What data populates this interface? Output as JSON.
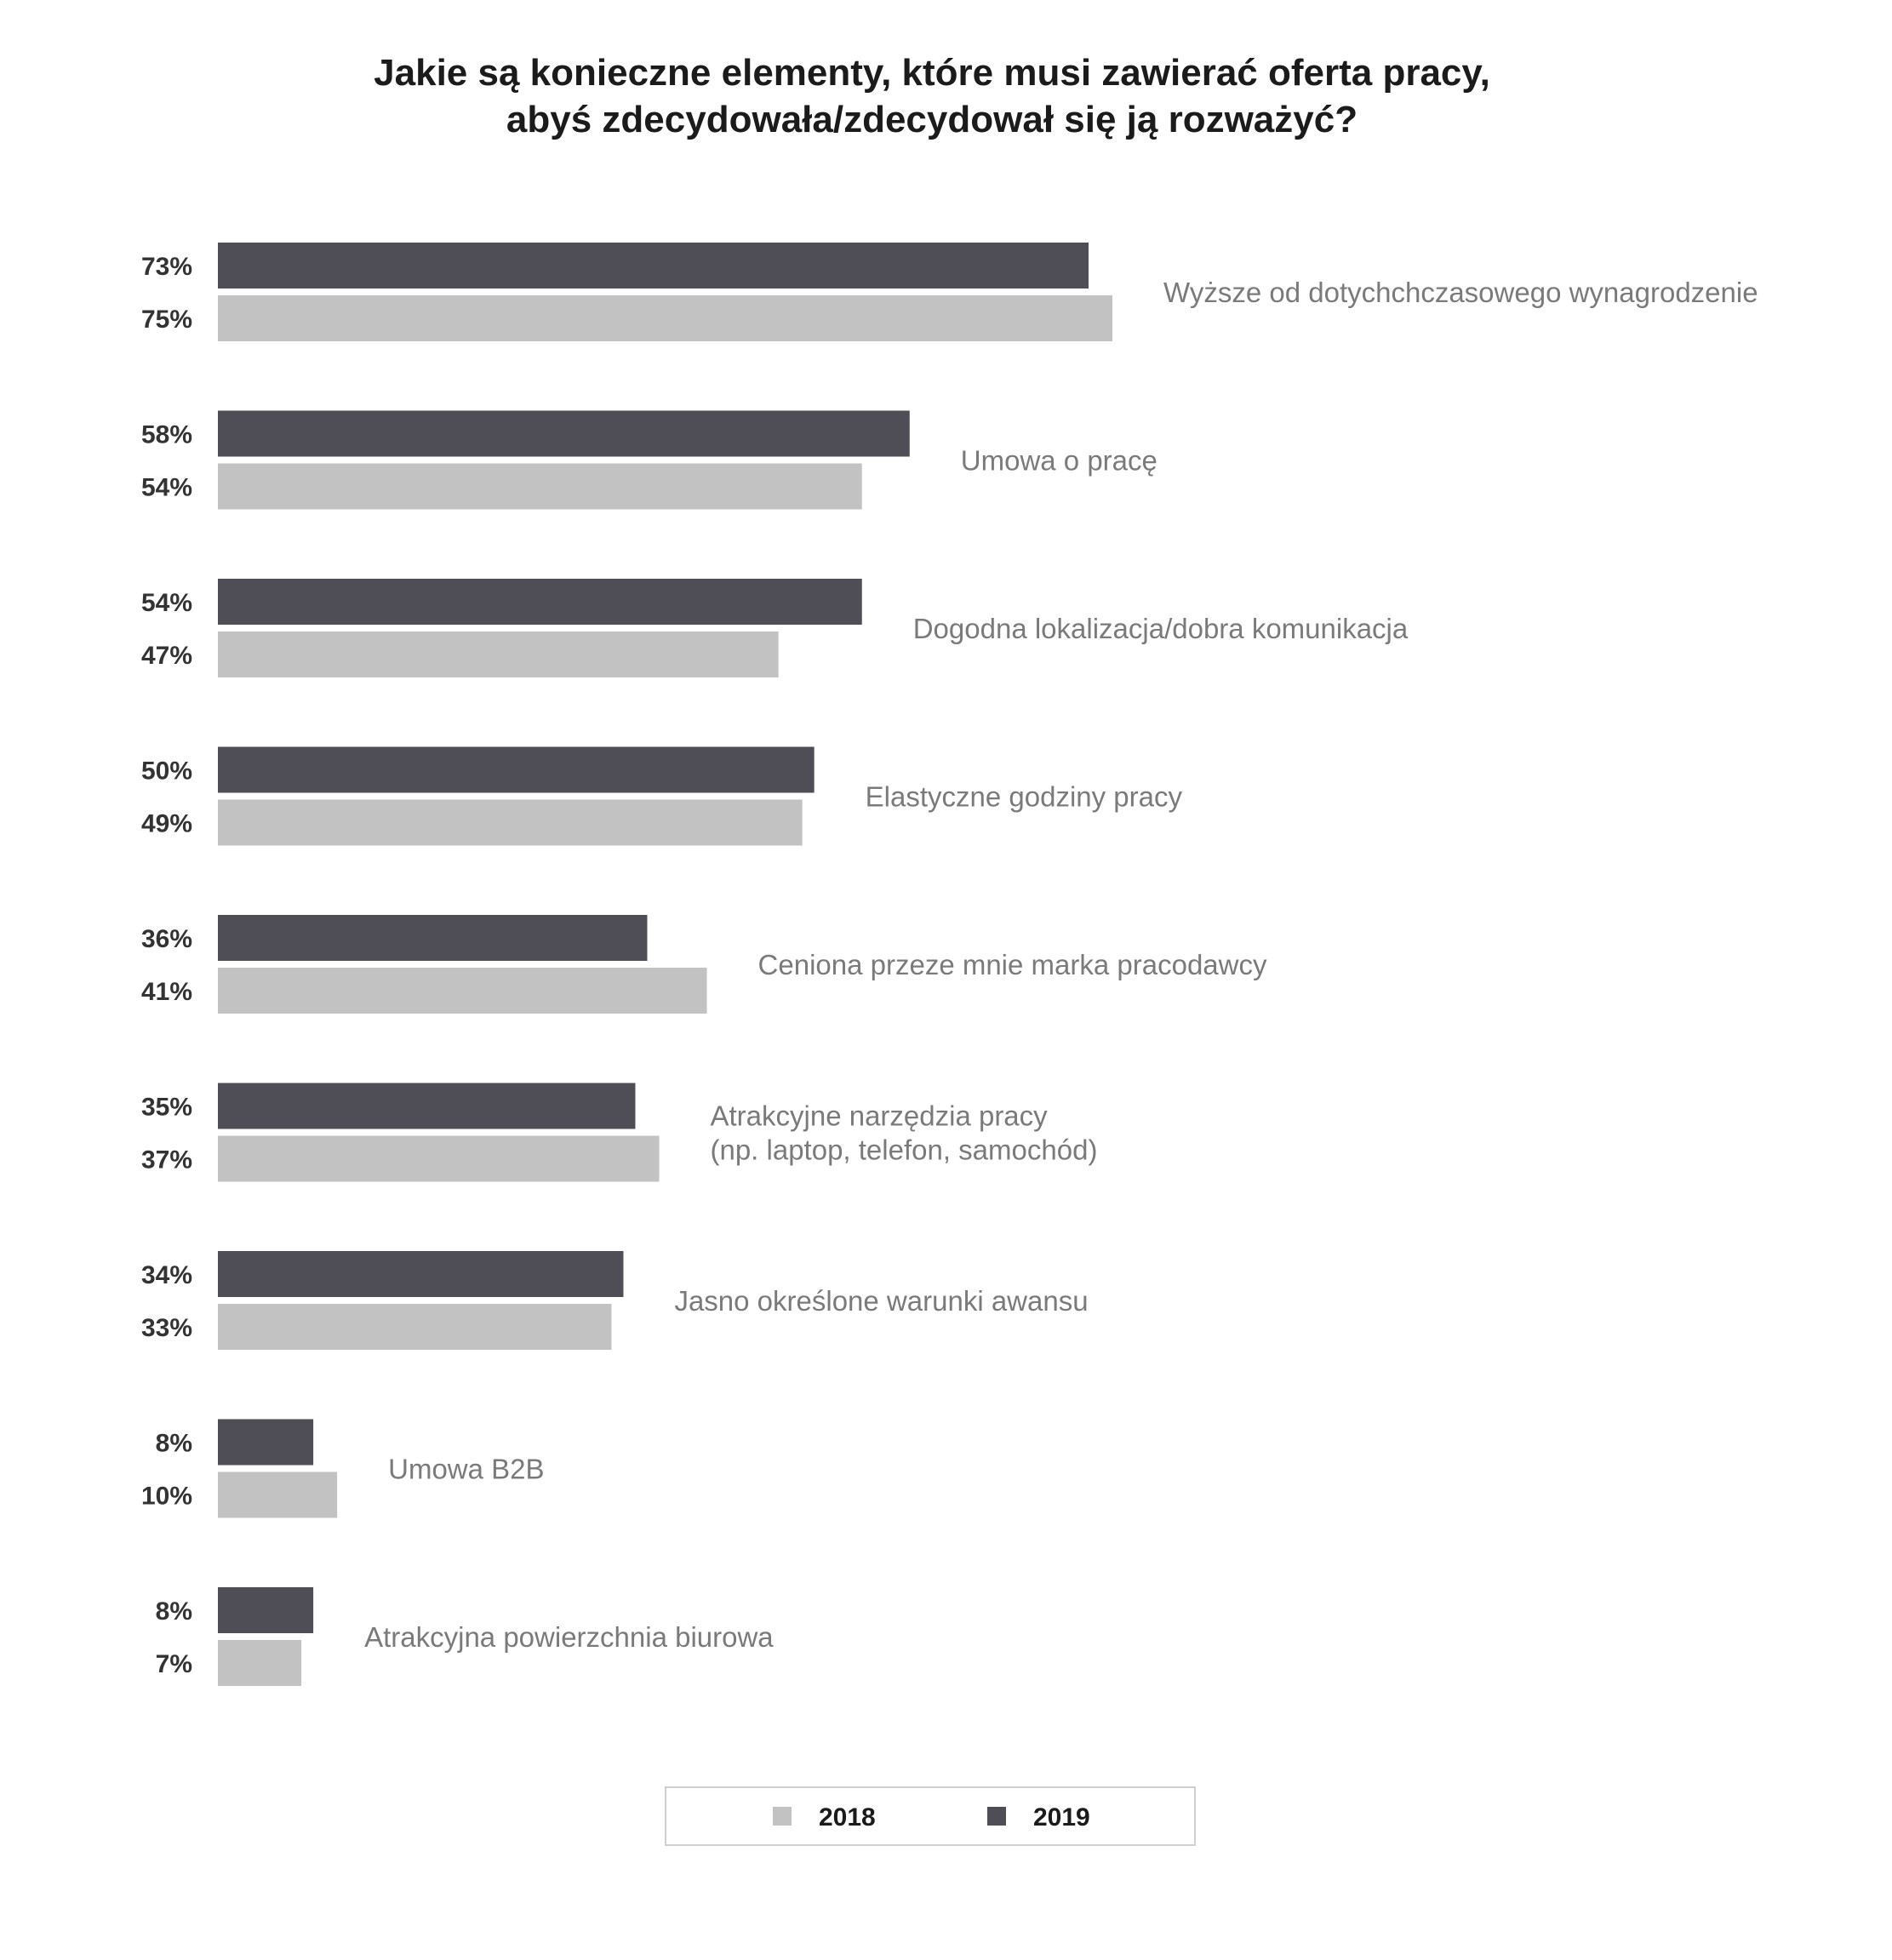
{
  "chart_data": {
    "type": "bar",
    "orientation": "horizontal",
    "title_lines": [
      "Jakie są konieczne elementy, które musi zawierać oferta pracy,",
      "abyś zdecydowała/zdecydował się ją rozważyć?"
    ],
    "categories": [
      [
        "Wyższe od dotychchczasowego wynagrodzenie"
      ],
      [
        "Umowa o pracę"
      ],
      [
        "Dogodna lokalizacja/dobra komunikacja"
      ],
      [
        "Elastyczne godziny pracy"
      ],
      [
        "Ceniona przeze mnie marka pracodawcy"
      ],
      [
        "Atrakcyjne narzędzia pracy",
        "(np. laptop, telefon, samochód)"
      ],
      [
        "Jasno określone warunki awansu"
      ],
      [
        "Umowa B2B"
      ],
      [
        "Atrakcyjna powierzchnia biurowa"
      ]
    ],
    "series": [
      {
        "name": "2019",
        "color": "#4f4d56",
        "values": [
          73,
          58,
          54,
          50,
          36,
          35,
          34,
          8,
          8
        ],
        "labels": [
          "73%",
          "58%",
          "54%",
          "50%",
          "36%",
          "35%",
          "34%",
          "8%",
          "8%"
        ]
      },
      {
        "name": "2018",
        "color": "#c2c2c2",
        "values": [
          75,
          54,
          47,
          49,
          41,
          37,
          33,
          10,
          7
        ],
        "labels": [
          "75%",
          "54%",
          "47%",
          "49%",
          "41%",
          "37%",
          "33%",
          "10%",
          "7%"
        ]
      }
    ],
    "legend": {
      "position": "bottom-center",
      "items": [
        {
          "label": "2018",
          "color": "#c2c2c2"
        },
        {
          "label": "2019",
          "color": "#4f4d56"
        }
      ]
    },
    "xlim": [
      0,
      100
    ],
    "grid": false
  }
}
